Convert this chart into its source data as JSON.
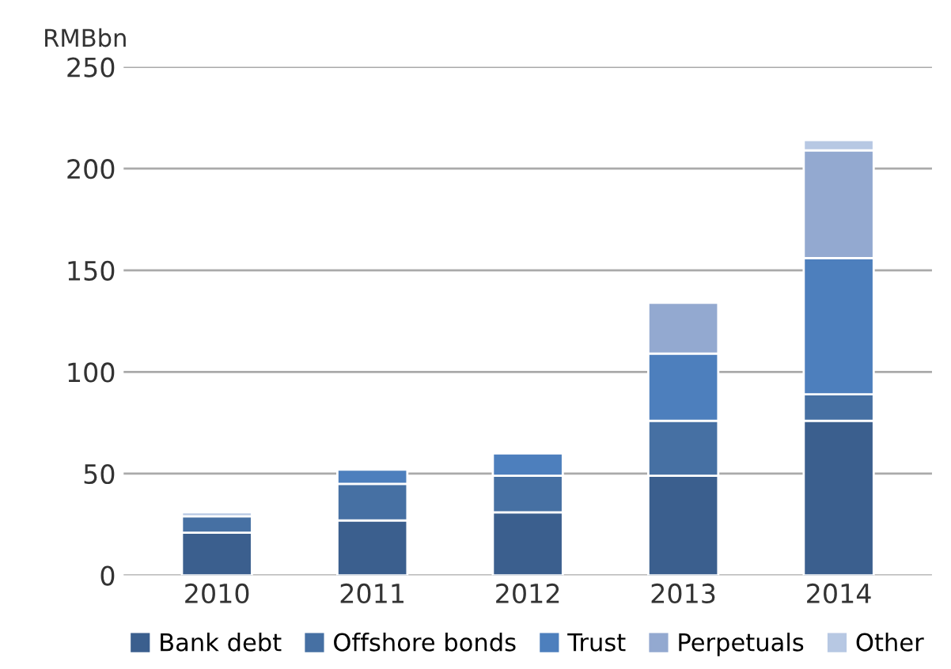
{
  "chart_data": {
    "type": "bar",
    "stacked": true,
    "ylabel": "RMBbn",
    "categories": [
      "2010",
      "2011",
      "2012",
      "2013",
      "2014"
    ],
    "series": [
      {
        "name": "Bank debt",
        "color": "#3b5f8e",
        "values": [
          21,
          27,
          31,
          49,
          76
        ]
      },
      {
        "name": "Offshore bonds",
        "color": "#4670a3",
        "values": [
          8,
          18,
          18,
          27,
          13
        ]
      },
      {
        "name": "Trust",
        "color": "#4d7fbd",
        "values": [
          null,
          7,
          11,
          33,
          67
        ]
      },
      {
        "name": "Perpetuals",
        "color": "#93a9d0",
        "values": [
          null,
          null,
          null,
          25,
          53
        ]
      },
      {
        "name": "Other",
        "color": "#b7c8e3",
        "values": [
          2,
          null,
          null,
          null,
          5
        ]
      }
    ],
    "ylim": [
      0,
      250
    ],
    "yticks": [
      0,
      50,
      100,
      150,
      200,
      250
    ],
    "grid": "y",
    "legend": "bottom"
  }
}
